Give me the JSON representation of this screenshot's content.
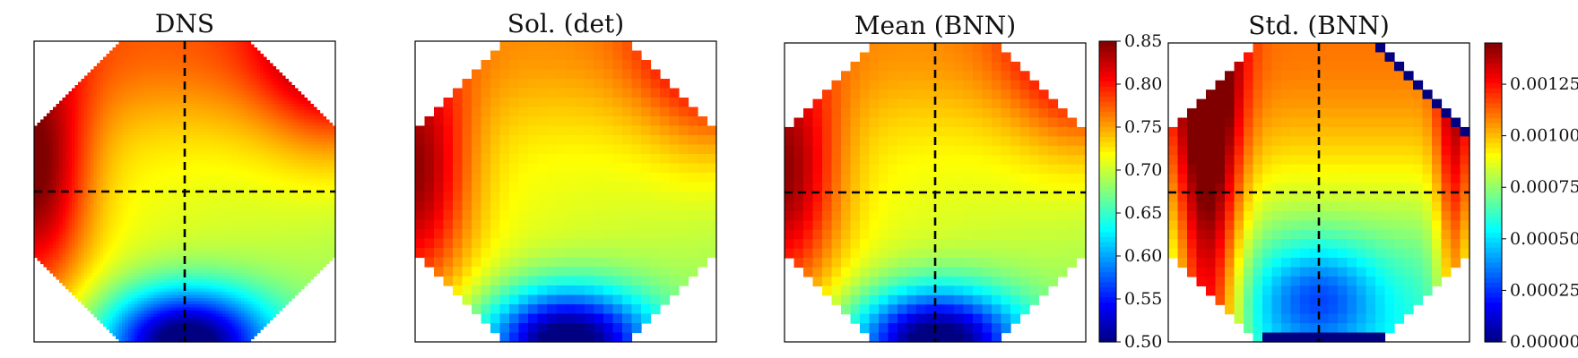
{
  "chart_data": [
    {
      "type": "heatmap",
      "title": "DNS",
      "colormap": "jet",
      "render": "smooth",
      "field": {
        "left": 0.85,
        "right": 0.68,
        "top": 0.78,
        "top_right": 0.82,
        "bottom": 0.5,
        "saddle": 0.72
      },
      "crosshair": true,
      "axes_ticks": false
    },
    {
      "type": "heatmap",
      "title": "Sol. (det)",
      "colormap": "jet",
      "render": "pixelated",
      "field": {
        "left": 0.84,
        "right": 0.72,
        "top": 0.76,
        "top_right": 0.81,
        "bottom": 0.5,
        "saddle": 0.72
      },
      "crosshair": false,
      "axes_ticks": false
    },
    {
      "type": "heatmap",
      "title": "Mean (BNN)",
      "colormap": "jet",
      "render": "pixelated",
      "field": {
        "left": 0.84,
        "right": 0.72,
        "top": 0.76,
        "top_right": 0.81,
        "bottom": 0.5,
        "saddle": 0.72
      },
      "crosshair": true,
      "axes_ticks": false,
      "colorbar": {
        "min": 0.5,
        "max": 0.85,
        "ticks": [
          "0.50",
          "0.55",
          "0.60",
          "0.65",
          "0.70",
          "0.75",
          "0.80",
          "0.85"
        ]
      }
    },
    {
      "type": "heatmap",
      "title": "Std. (BNN)",
      "colormap": "jet",
      "render": "pixelated",
      "field": {
        "left_band": 0.00142,
        "center": 0.00085,
        "right_edge": 0.00105,
        "bottom": 0.0,
        "diag_edge": 0.0
      },
      "crosshair": true,
      "axes_ticks": false,
      "colorbar": {
        "min": 0.0,
        "max": 0.00145,
        "ticks": [
          "0.00000",
          "0.00025",
          "0.00050",
          "0.00075",
          "0.00100",
          "0.00125"
        ]
      }
    }
  ]
}
